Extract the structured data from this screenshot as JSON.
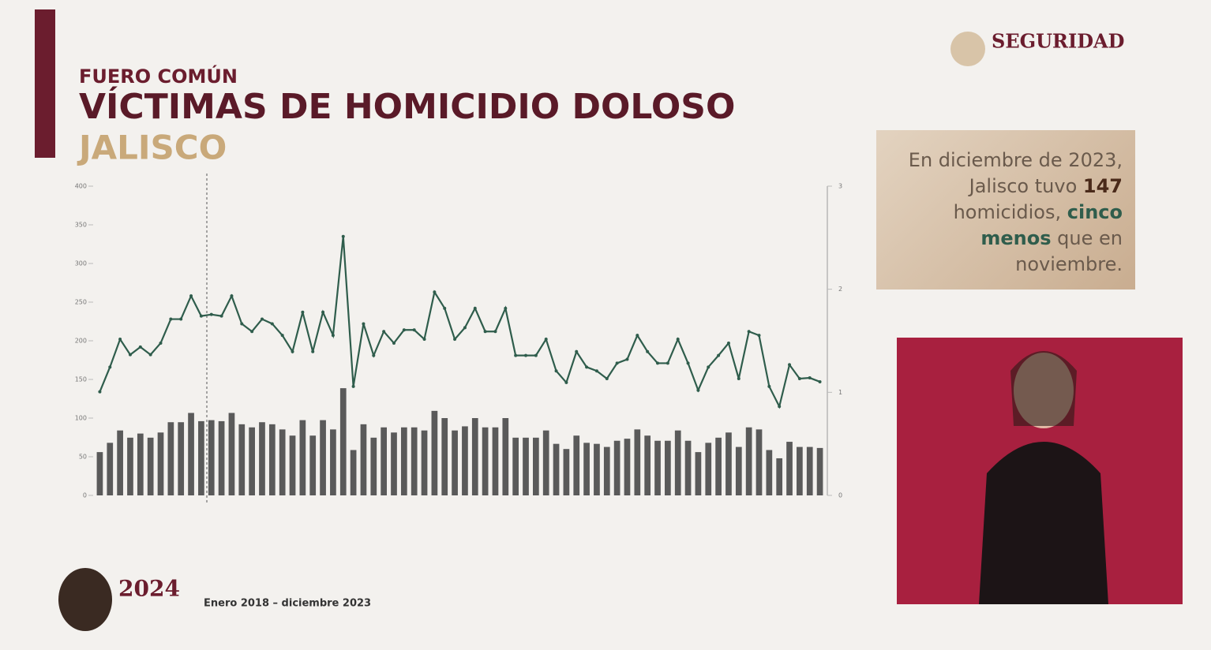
{
  "header": {
    "kicker": "FUERO COMÚN",
    "title": "VÍCTIMAS DE HOMICIDIO DOLOSO",
    "subtitle": "JALISCO",
    "logo_text": "SEGURIDAD"
  },
  "callout": {
    "parts": [
      "En diciembre de 2023,",
      "Jalisco tuvo",
      "147",
      "homicidios,",
      "cinco",
      "menos",
      "que en",
      "noviembre."
    ]
  },
  "footer": {
    "period": "Enero 2018 – diciembre 2023",
    "badge": "2024"
  },
  "chart_data": {
    "type": "combo",
    "categories": [
      null,
      null,
      null,
      null,
      null,
      null,
      null,
      null,
      null,
      null,
      null,
      null,
      null,
      null,
      null,
      null,
      null,
      null,
      null,
      null,
      null,
      null,
      null,
      null,
      null,
      null,
      null,
      null,
      null,
      null,
      null,
      null,
      null,
      null,
      null,
      null,
      null,
      null,
      null,
      null,
      null,
      null,
      null,
      null,
      null,
      null,
      null,
      null,
      null,
      null,
      null,
      null,
      null,
      null,
      null,
      null,
      null,
      null,
      null,
      null,
      null,
      null,
      null,
      null,
      null,
      null,
      null,
      null,
      null,
      null,
      null,
      null
    ],
    "ylim": [
      0,
      400
    ],
    "yticks": [
      0,
      50,
      100,
      150,
      200,
      250,
      300,
      350,
      400
    ],
    "y2lim": [
      0,
      3
    ],
    "y2ticks": [
      0,
      1,
      2,
      3
    ],
    "series": [
      {
        "type": "bar",
        "axis": "y2",
        "color": "#5a5a5a",
        "values": [
          0.42,
          0.51,
          0.63,
          0.56,
          0.6,
          0.56,
          0.61,
          0.71,
          0.71,
          0.8,
          0.72,
          0.73,
          0.72,
          0.8,
          0.69,
          0.66,
          0.71,
          0.69,
          0.64,
          0.58,
          0.73,
          0.58,
          0.73,
          0.64,
          1.04,
          0.44,
          0.69,
          0.56,
          0.66,
          0.61,
          0.66,
          0.66,
          0.63,
          0.82,
          0.75,
          0.63,
          0.67,
          0.75,
          0.66,
          0.66,
          0.75,
          0.56,
          0.56,
          0.56,
          0.63,
          0.5,
          0.45,
          0.58,
          0.51,
          0.5,
          0.47,
          0.53,
          0.55,
          0.64,
          0.58,
          0.53,
          0.53,
          0.63,
          0.53,
          0.42,
          0.51,
          0.56,
          0.61,
          0.47,
          0.66,
          0.64,
          0.44,
          0.36,
          0.52,
          0.47,
          0.47,
          0.46
        ]
      },
      {
        "type": "line",
        "color": "#2f5d4c",
        "values": [
          134,
          166,
          202,
          182,
          192,
          182,
          197,
          228,
          228,
          258,
          232,
          234,
          232,
          258,
          222,
          212,
          228,
          222,
          207,
          186,
          237,
          186,
          237,
          207,
          335,
          141,
          222,
          181,
          212,
          197,
          214,
          214,
          202,
          263,
          242,
          202,
          217,
          242,
          212,
          212,
          242,
          181,
          181,
          181,
          202,
          161,
          146,
          186,
          166,
          161,
          151,
          171,
          176,
          207,
          186,
          171,
          171,
          202,
          171,
          136,
          166,
          181,
          197,
          151,
          212,
          207,
          141,
          115,
          169,
          151,
          152,
          147
        ]
      }
    ]
  }
}
